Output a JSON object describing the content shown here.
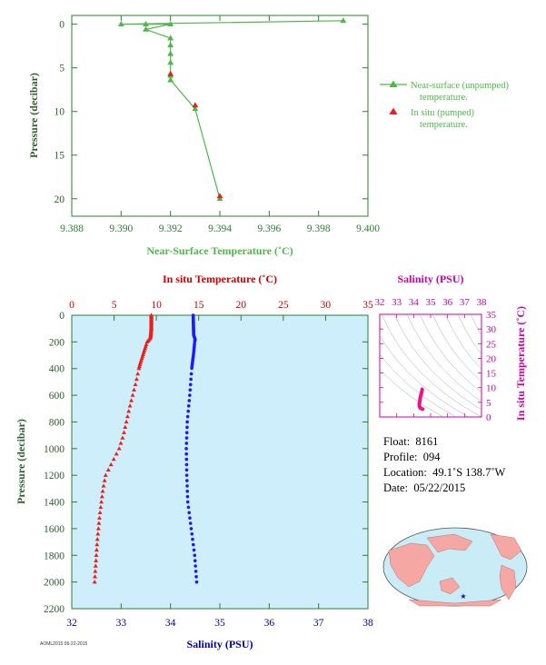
{
  "chart_data": [
    {
      "type": "line",
      "xlabel": "Near-Surface Temperature (˚C)",
      "ylabel": "Pressure (decibar)",
      "xlim": [
        9.388,
        9.4
      ],
      "ylim": [
        22,
        -1
      ],
      "x_ticks": [
        "9.388",
        "9.390",
        "9.392",
        "9.394",
        "9.396",
        "9.398",
        "9.400"
      ],
      "y_ticks": [
        "0",
        "5",
        "10",
        "15",
        "20"
      ],
      "legend_position": "right",
      "series": [
        {
          "name": "Near-surface (unpumped)\ntemperature.",
          "color": "#4db848",
          "marker": "triangle",
          "line": true,
          "points": [
            [
              9.399,
              -0.4
            ],
            [
              9.39,
              0.0
            ],
            [
              9.391,
              0.0
            ],
            [
              9.392,
              0.0
            ],
            [
              9.391,
              0.6
            ],
            [
              9.392,
              1.6
            ],
            [
              9.392,
              2.4
            ],
            [
              9.392,
              3.4
            ],
            [
              9.392,
              4.4
            ],
            [
              9.392,
              5.9
            ],
            [
              9.392,
              6.4
            ],
            [
              9.393,
              9.7
            ],
            [
              9.394,
              20.0
            ]
          ]
        },
        {
          "name": "In situ (pumped)\ntemperature.",
          "color": "#e8201c",
          "marker": "triangle",
          "line": false,
          "points": [
            [
              9.392,
              5.7
            ],
            [
              9.393,
              9.3
            ],
            [
              9.394,
              19.7
            ]
          ]
        }
      ]
    },
    {
      "type": "scatter",
      "ylabel": "Pressure (decibar)",
      "top_axis": {
        "label": "In situ Temperature (˚C)",
        "lim": [
          0,
          35
        ],
        "ticks": [
          "0",
          "5",
          "10",
          "15",
          "20",
          "25",
          "30",
          "35"
        ],
        "color": "#cc0000"
      },
      "bottom_axis": {
        "label": "Salinity (PSU)",
        "lim": [
          32,
          38
        ],
        "ticks": [
          "32",
          "33",
          "34",
          "35",
          "36",
          "37",
          "38"
        ],
        "color": "#0000aa"
      },
      "ylim": [
        2200,
        0
      ],
      "y_ticks": [
        "0",
        "200",
        "400",
        "600",
        "800",
        "1000",
        "1200",
        "1400",
        "1600",
        "1800",
        "2000",
        "2200"
      ],
      "background": "#cdeefa",
      "series": [
        {
          "name": "temperature",
          "color": "#e8201c",
          "marker": "triangle",
          "profile": [
            [
              0,
              9.4
            ],
            [
              100,
              9.4
            ],
            [
              170,
              9.3
            ],
            [
              200,
              8.9
            ],
            [
              260,
              8.6
            ],
            [
              320,
              8.3
            ],
            [
              380,
              8.0
            ],
            [
              500,
              7.6
            ],
            [
              700,
              6.8
            ],
            [
              900,
              6.1
            ],
            [
              1000,
              5.6
            ],
            [
              1100,
              4.8
            ],
            [
              1200,
              4.0
            ],
            [
              1300,
              3.7
            ],
            [
              1500,
              3.3
            ],
            [
              1700,
              3.0
            ],
            [
              1900,
              2.8
            ],
            [
              2000,
              2.7
            ]
          ]
        },
        {
          "name": "salinity",
          "color": "#1a1aff",
          "marker": "dot",
          "profile": [
            [
              0,
              34.46
            ],
            [
              150,
              34.47
            ],
            [
              180,
              34.5
            ],
            [
              200,
              34.49
            ],
            [
              280,
              34.47
            ],
            [
              400,
              34.43
            ],
            [
              600,
              34.39
            ],
            [
              800,
              34.34
            ],
            [
              1000,
              34.32
            ],
            [
              1200,
              34.33
            ],
            [
              1400,
              34.35
            ],
            [
              1600,
              34.42
            ],
            [
              1800,
              34.49
            ],
            [
              2000,
              34.53
            ]
          ]
        }
      ]
    },
    {
      "type": "scatter",
      "title": "Salinity (PSU)",
      "ylabel": "In situ Temperature (˚C)",
      "xlim": [
        32,
        38
      ],
      "ylim": [
        0,
        35
      ],
      "x_ticks": [
        "32",
        "33",
        "34",
        "35",
        "36",
        "37",
        "38"
      ],
      "y_ticks": [
        "0",
        "5",
        "10",
        "15",
        "20",
        "25",
        "30",
        "35"
      ],
      "color": "#cc00aa",
      "series": [
        {
          "name": "T-S",
          "color": "#ee1188",
          "points": [
            [
              34.5,
              9.4
            ],
            [
              34.48,
              8.6
            ],
            [
              34.43,
              7.6
            ],
            [
              34.39,
              6.5
            ],
            [
              34.36,
              5.5
            ],
            [
              34.33,
              4.5
            ],
            [
              34.34,
              3.7
            ],
            [
              34.4,
              3.0
            ],
            [
              34.53,
              2.7
            ]
          ]
        }
      ]
    }
  ],
  "info": {
    "float_label": "Float:",
    "float": "8161",
    "profile_label": "Profile:",
    "profile": "094",
    "location_label": "Location:",
    "location": "49.1˚S  138.7˚W",
    "date_label": "Date:",
    "date": "05/22/2015"
  },
  "map": {
    "ocean": "#c9ecf7",
    "land": "#f4a7a3",
    "marker": "★",
    "marker_color": "#1111aa"
  },
  "footer": {
    "tiny_text": "AOML2015 06-22-2015"
  }
}
